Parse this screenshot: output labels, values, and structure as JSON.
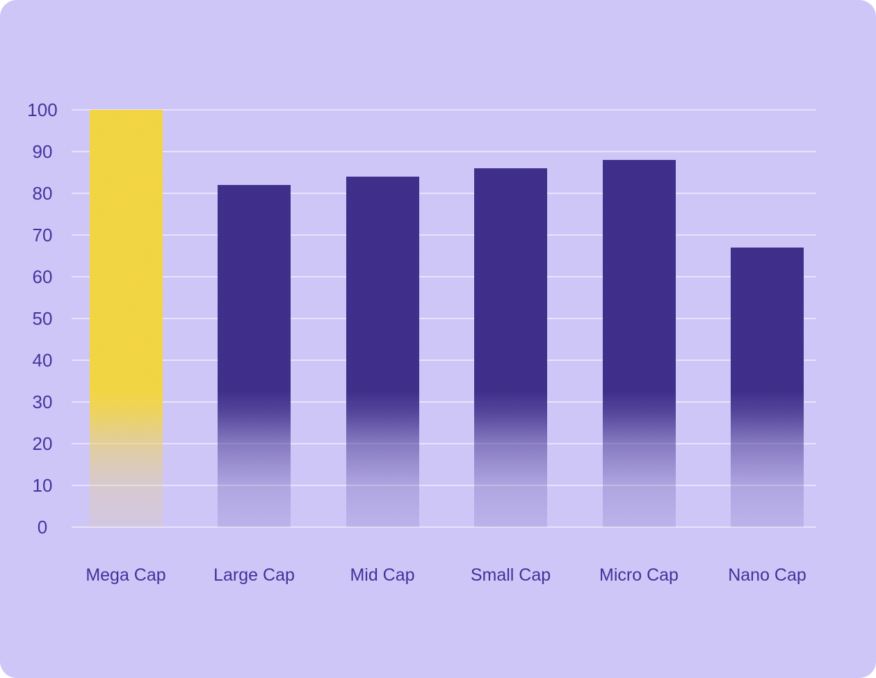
{
  "chart_data": {
    "type": "bar",
    "title": "",
    "xlabel": "",
    "ylabel": "",
    "categories": [
      "Mega Cap",
      "Large Cap",
      "Mid Cap",
      "Small Cap",
      "Micro Cap",
      "Nano Cap"
    ],
    "values": [
      100,
      82,
      84,
      86,
      88,
      67
    ],
    "ylim": [
      0,
      100
    ],
    "yticks": [
      0,
      10,
      20,
      30,
      40,
      50,
      60,
      70,
      80,
      90,
      100
    ],
    "grid": true,
    "legend": "none",
    "highlight_index": 0,
    "colors": {
      "highlight_bar": "#F2D23F",
      "bar": "#3B2C82",
      "card_background": "#CFC6F8",
      "tick_label": "#45339E",
      "category_label": "#43319B",
      "gridline": "rgba(255,255,255,0.5)"
    }
  }
}
